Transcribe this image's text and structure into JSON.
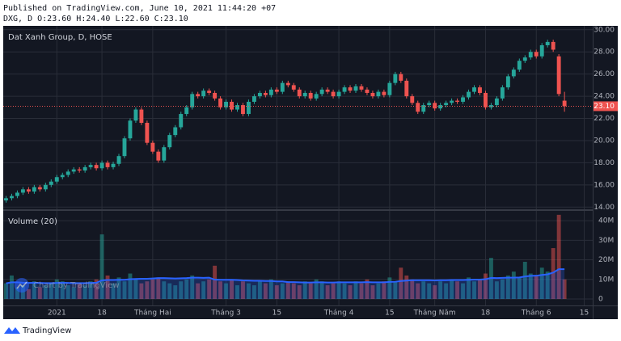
{
  "header": {
    "published": "Published on TradingView.com, June 10, 2021 11:44:20 +07",
    "legend": "DXG, D O:23.60 H:24.40 L:22.60 C:23.10"
  },
  "footer": {
    "brand": "TradingView"
  },
  "chart_data": {
    "type": "candlestick",
    "title": "Dat Xanh Group, D, HOSE",
    "volume_title": "Volume (20)",
    "watermark": "Chart by TradingView",
    "last_label": "23.10",
    "up_color": "#26a69a",
    "down_color": "#ef5350",
    "ma_color": "#2962ff",
    "grid": true,
    "xlim": [
      -0.5,
      104
    ],
    "xticks": [
      {
        "value": 9,
        "label": "2021"
      },
      {
        "value": 17,
        "label": "18"
      },
      {
        "value": 26,
        "label": "Tháng Hai"
      },
      {
        "value": 39,
        "label": "Tháng 3"
      },
      {
        "value": 48,
        "label": "15"
      },
      {
        "value": 59,
        "label": "Tháng 4"
      },
      {
        "value": 68,
        "label": "15"
      },
      {
        "value": 76,
        "label": "Tháng Năm"
      },
      {
        "value": 85,
        "label": "18"
      },
      {
        "value": 94,
        "label": "Tháng 6"
      },
      {
        "value": 102.5,
        "label": "15"
      }
    ],
    "ylim": [
      13.8,
      30.35
    ],
    "yticks": [
      {
        "value": 14,
        "label": "14.00"
      },
      {
        "value": 16,
        "label": "16.00"
      },
      {
        "value": 18,
        "label": "18.00"
      },
      {
        "value": 20,
        "label": "20.00"
      },
      {
        "value": 22,
        "label": "22.00"
      },
      {
        "value": 24,
        "label": "24.00"
      },
      {
        "value": 26,
        "label": "26.00"
      },
      {
        "value": 28,
        "label": "28.00"
      },
      {
        "value": 30,
        "label": "30.00"
      }
    ],
    "volume_ylim": [
      -3.3,
      45
    ],
    "volume_yticks": [
      0,
      {
        "value": 10,
        "label": "10M"
      },
      {
        "value": 20,
        "label": "20M"
      },
      {
        "value": 30,
        "label": "30M"
      },
      {
        "value": 40,
        "label": "40M"
      }
    ],
    "open": [
      14.6,
      14.8,
      15.0,
      15.3,
      15.6,
      15.4,
      15.8,
      15.6,
      16.0,
      16.3,
      16.7,
      16.9,
      17.2,
      17.4,
      17.3,
      17.6,
      17.8,
      17.5,
      18.0,
      17.6,
      17.9,
      18.6,
      20.2,
      21.8,
      22.8,
      21.6,
      19.8,
      19.0,
      18.2,
      19.4,
      20.5,
      21.2,
      22.4,
      23.0,
      24.2,
      24.0,
      24.5,
      24.3,
      23.8,
      23.0,
      23.5,
      22.8,
      23.2,
      22.4,
      23.5,
      24.0,
      24.3,
      24.1,
      24.6,
      24.4,
      25.2,
      25.0,
      24.6,
      24.0,
      24.3,
      23.8,
      24.2,
      24.6,
      24.4,
      24.0,
      24.4,
      24.8,
      24.5,
      24.9,
      24.6,
      24.3,
      24.0,
      24.4,
      24.1,
      25.2,
      26.0,
      25.4,
      24.0,
      23.4,
      22.6,
      23.2,
      23.4,
      22.9,
      23.2,
      23.4,
      23.6,
      23.5,
      23.9,
      24.4,
      24.8,
      24.3,
      23.0,
      23.2,
      23.8,
      24.8,
      25.8,
      26.4,
      27.2,
      27.5,
      28.0,
      27.6,
      28.6,
      28.9,
      27.6,
      23.6
    ],
    "high": [
      15.0,
      15.2,
      15.5,
      15.8,
      15.8,
      16.0,
      16.0,
      16.2,
      16.5,
      16.9,
      17.1,
      17.4,
      17.6,
      17.6,
      17.8,
      18.0,
      18.0,
      18.2,
      18.2,
      18.1,
      18.8,
      20.4,
      22.0,
      23.0,
      23.0,
      21.8,
      20.0,
      19.2,
      19.6,
      20.7,
      21.4,
      22.6,
      23.2,
      24.4,
      24.4,
      24.7,
      24.7,
      24.5,
      24.0,
      23.7,
      23.7,
      23.4,
      23.4,
      23.7,
      24.2,
      24.5,
      24.5,
      24.8,
      24.8,
      25.4,
      25.4,
      25.2,
      24.8,
      24.5,
      24.5,
      24.4,
      24.8,
      24.8,
      24.6,
      24.6,
      25.0,
      25.0,
      25.1,
      25.1,
      24.8,
      24.5,
      24.6,
      24.6,
      25.4,
      26.2,
      26.2,
      25.6,
      24.2,
      23.6,
      23.4,
      23.6,
      23.6,
      23.4,
      23.6,
      23.8,
      23.8,
      24.1,
      24.6,
      25.0,
      25.0,
      24.5,
      23.4,
      24.0,
      25.0,
      26.0,
      26.6,
      27.4,
      27.7,
      28.2,
      28.2,
      28.8,
      29.1,
      29.1,
      27.8,
      24.4
    ],
    "low": [
      14.4,
      14.6,
      14.8,
      15.1,
      15.2,
      15.2,
      15.4,
      15.4,
      15.8,
      16.1,
      16.5,
      16.7,
      17.0,
      17.1,
      17.1,
      17.4,
      17.3,
      17.3,
      17.4,
      17.4,
      17.7,
      18.4,
      20.0,
      21.6,
      21.4,
      19.6,
      18.8,
      18.0,
      18.0,
      19.2,
      20.3,
      21.0,
      22.2,
      22.8,
      23.8,
      23.8,
      24.1,
      23.6,
      22.8,
      22.8,
      22.6,
      22.6,
      22.2,
      22.2,
      23.3,
      23.8,
      23.9,
      23.9,
      24.2,
      24.2,
      24.8,
      24.4,
      23.8,
      23.8,
      23.6,
      23.6,
      24.0,
      24.2,
      23.8,
      23.8,
      24.2,
      24.3,
      24.3,
      24.4,
      24.1,
      23.8,
      23.8,
      23.9,
      23.9,
      25.0,
      25.2,
      23.8,
      23.2,
      22.4,
      22.4,
      23.0,
      22.7,
      22.7,
      23.0,
      23.2,
      23.3,
      23.3,
      23.7,
      24.2,
      24.1,
      22.8,
      22.8,
      23.0,
      23.6,
      24.6,
      25.6,
      26.2,
      27.0,
      27.3,
      27.4,
      27.4,
      28.4,
      28.0,
      24.0,
      22.6
    ],
    "close": [
      14.8,
      15.0,
      15.3,
      15.6,
      15.4,
      15.8,
      15.6,
      16.0,
      16.3,
      16.7,
      16.9,
      17.2,
      17.4,
      17.3,
      17.6,
      17.8,
      17.5,
      18.0,
      17.6,
      17.9,
      18.6,
      20.2,
      21.8,
      22.8,
      21.6,
      19.8,
      19.0,
      18.2,
      19.4,
      20.5,
      21.2,
      22.4,
      23.0,
      24.2,
      24.0,
      24.5,
      24.3,
      23.8,
      23.0,
      23.5,
      22.8,
      23.2,
      22.4,
      23.5,
      24.0,
      24.3,
      24.1,
      24.6,
      24.4,
      25.2,
      25.0,
      24.6,
      24.0,
      24.3,
      23.8,
      24.2,
      24.6,
      24.4,
      24.0,
      24.4,
      24.8,
      24.5,
      24.9,
      24.6,
      24.3,
      24.0,
      24.4,
      24.1,
      25.2,
      26.0,
      25.4,
      24.0,
      23.4,
      22.6,
      23.2,
      23.4,
      22.9,
      23.2,
      23.4,
      23.6,
      23.5,
      23.9,
      24.4,
      24.8,
      24.3,
      23.0,
      23.2,
      23.8,
      24.8,
      25.8,
      26.4,
      27.2,
      27.5,
      28.0,
      27.6,
      28.6,
      28.9,
      28.2,
      24.2,
      23.1
    ],
    "volume": [
      8,
      12,
      6,
      7,
      5,
      9,
      6,
      7,
      8,
      10,
      9,
      7,
      6,
      8,
      7,
      9,
      10,
      33,
      12,
      8,
      11,
      9,
      13,
      10,
      8,
      9,
      10,
      11,
      9,
      8,
      7,
      9,
      10,
      12,
      8,
      9,
      10,
      17,
      9,
      8,
      10,
      7,
      9,
      8,
      7,
      9,
      8,
      10,
      7,
      8,
      9,
      8,
      7,
      9,
      8,
      10,
      9,
      7,
      8,
      9,
      8,
      7,
      9,
      8,
      10,
      7,
      8,
      9,
      11,
      9,
      16,
      12,
      10,
      8,
      9,
      8,
      7,
      9,
      8,
      10,
      9,
      8,
      11,
      9,
      10,
      13,
      21,
      9,
      10,
      12,
      14,
      11,
      19,
      13,
      12,
      16,
      14,
      26,
      43,
      10
    ],
    "volume_ma": [
      8,
      8.5,
      8.5,
      8.3,
      8.2,
      8.3,
      8.2,
      8.1,
      8.1,
      8.2,
      8.3,
      8.2,
      8.1,
      8.1,
      8.1,
      8.2,
      8.3,
      9.5,
      9.7,
      9.7,
      9.8,
      9.8,
      10.1,
      10.2,
      10.3,
      10.3,
      10.5,
      10.7,
      10.7,
      10.6,
      10.5,
      10.6,
      10.7,
      10.9,
      10.9,
      10.8,
      10.9,
      9.9,
      9.8,
      9.8,
      9.8,
      9.7,
      9.5,
      9.4,
      9.3,
      9.3,
      9.2,
      9.2,
      9.0,
      9.0,
      8.6,
      8.6,
      8.5,
      8.4,
      8.4,
      8.5,
      8.5,
      8.4,
      8.4,
      8.5,
      8.5,
      8.5,
      8.5,
      8.5,
      8.6,
      8.5,
      8.5,
      8.5,
      8.7,
      8.8,
      9.2,
      9.4,
      9.6,
      9.6,
      9.6,
      9.6,
      9.5,
      9.6,
      9.6,
      9.7,
      9.7,
      9.7,
      9.8,
      9.9,
      9.9,
      10.1,
      10.8,
      10.7,
      10.8,
      10.9,
      10.9,
      11.0,
      11.5,
      11.8,
      11.9,
      12.3,
      12.6,
      13.5,
      15.2,
      15.2
    ]
  }
}
